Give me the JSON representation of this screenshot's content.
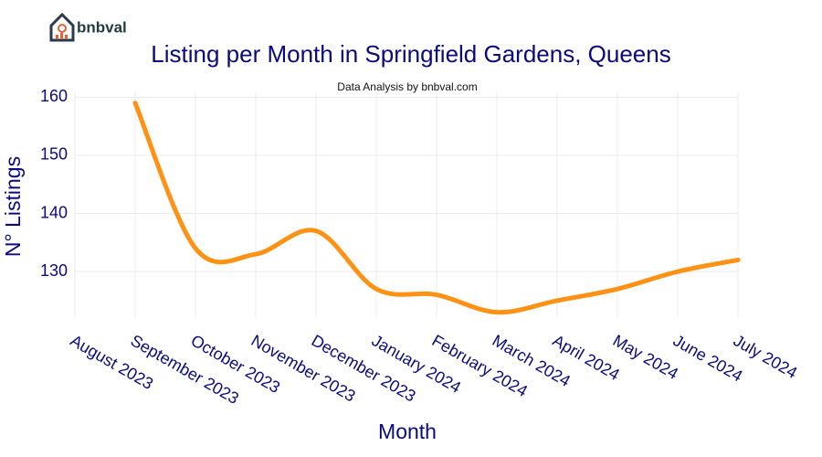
{
  "brand": "bnbval",
  "chart_data": {
    "type": "line",
    "title": "Listing per Month in Springfield Gardens, Queens",
    "subtitle": "Data Analysis by bnbval.com",
    "x_label": "Month",
    "y_label": "N° Listings",
    "categories": [
      "August 2023",
      "September 2023",
      "October 2023",
      "November 2023",
      "December 2023",
      "January 2024",
      "February 2024",
      "March 2024",
      "April 2024",
      "May 2024",
      "June 2024",
      "July 2024"
    ],
    "series": [
      {
        "name": "Listings",
        "color": "#ff9214",
        "values": [
          null,
          159,
          134,
          133,
          137,
          127,
          126,
          123,
          125,
          127,
          130,
          132
        ]
      }
    ],
    "ylim": [
      122,
      161
    ],
    "yticks": [
      130,
      140,
      150,
      160
    ],
    "grid": true
  }
}
